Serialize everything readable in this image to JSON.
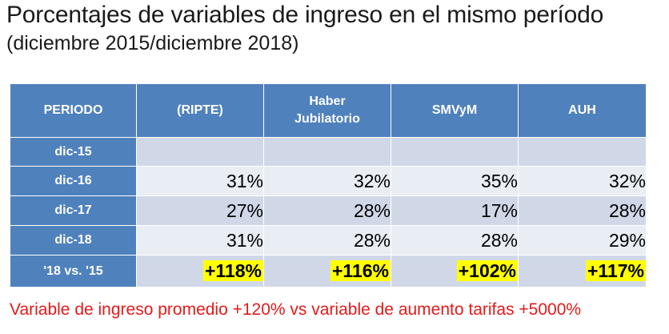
{
  "title": "Porcentajes de variables de ingreso en el mismo período",
  "subtitle": "(diciembre 2015/diciembre 2018)",
  "table": {
    "headers": {
      "period": "PERIODO",
      "ripte": "(RIPTE)",
      "haber_line1": "Haber",
      "haber_line2": "Jubilatorio",
      "smvym": "SMVyM",
      "auh": "AUH"
    },
    "rows": [
      {
        "period": "dic-15",
        "ripte": "",
        "haber": "",
        "smvym": "",
        "auh": ""
      },
      {
        "period": "dic-16",
        "ripte": "31%",
        "haber": "32%",
        "smvym": "35%",
        "auh": "32%"
      },
      {
        "period": "dic-17",
        "ripte": "27%",
        "haber": "28%",
        "smvym": "17%",
        "auh": "28%"
      },
      {
        "period": "dic-18",
        "ripte": "31%",
        "haber": "28%",
        "smvym": "28%",
        "auh": "29%"
      },
      {
        "period": "'18 vs. '15",
        "ripte": "+118%",
        "haber": "+116%",
        "smvym": "+102%",
        "auh": "+117%"
      }
    ]
  },
  "footer": "Variable de ingreso promedio +120% vs variable de aumento tarifas +5000%",
  "colors": {
    "header_blue": "#4f81bd",
    "row_dark": "#d0d8e8",
    "row_light": "#e9edf4",
    "highlight": "#ffff00",
    "footer_red": "#e41a1a"
  }
}
